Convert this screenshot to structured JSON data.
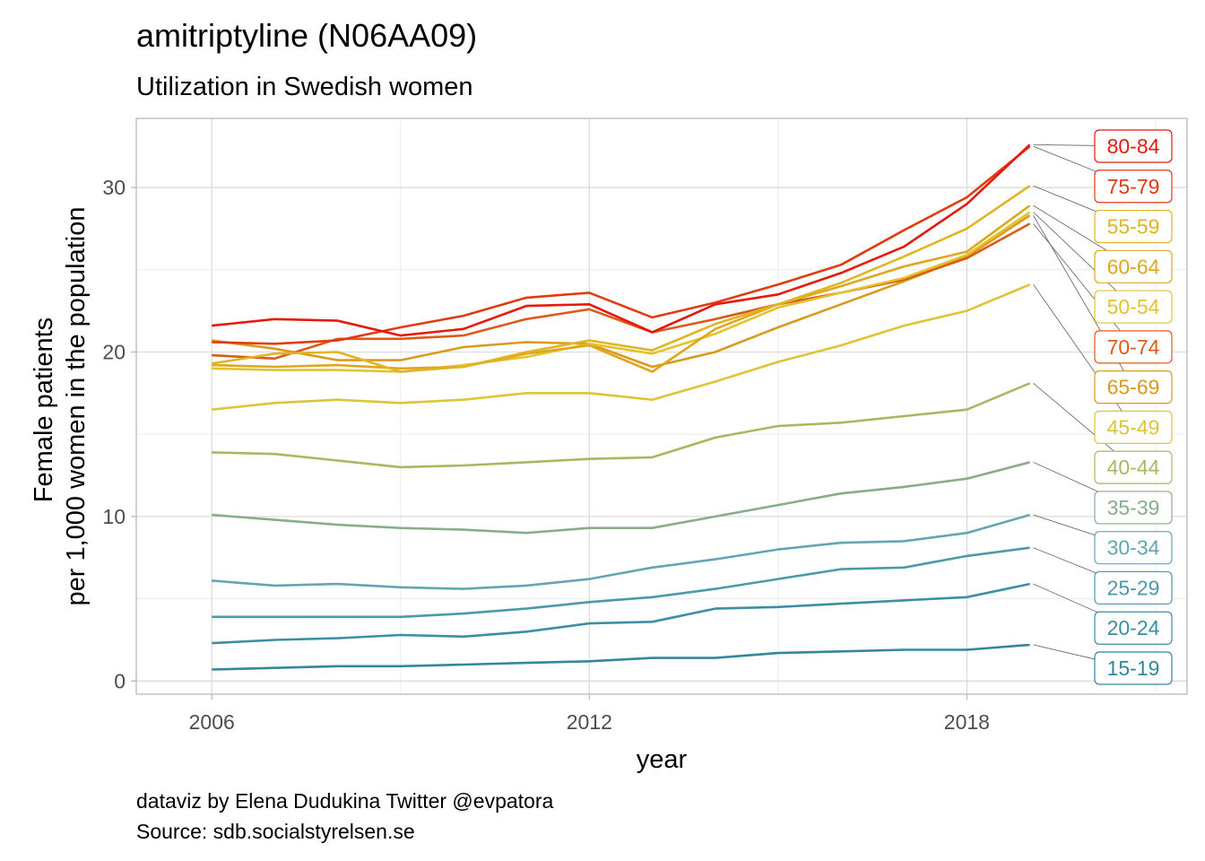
{
  "chart_data": {
    "type": "line",
    "title": "amitriptyline (N06AA09)",
    "subtitle": "Utilization in Swedish women",
    "xlabel": "year",
    "ylabel_lines": [
      "Female patients",
      "per 1,000 women in the population"
    ],
    "caption_lines": [
      "dataviz by Elena Dudukina Twitter @evpatora",
      "Source: sdb.socialstyrelsen.se"
    ],
    "x": [
      2006,
      2007,
      2008,
      2009,
      2010,
      2011,
      2012,
      2013,
      2014,
      2015,
      2016,
      2017,
      2018,
      2019
    ],
    "xlim": [
      2004.8,
      2021.5
    ],
    "ylim": [
      -0.8,
      34.2
    ],
    "x_ticks": [
      2006,
      2012,
      2018
    ],
    "y_ticks": [
      0,
      10,
      20,
      30
    ],
    "x_minor": [
      2009,
      2015,
      2021
    ],
    "y_minor": [
      5,
      15,
      25
    ],
    "grid": true,
    "legend": "direct-labels-right",
    "series": [
      {
        "name": "80-84",
        "color": "#e41a0c",
        "values": [
          21.6,
          22.0,
          21.9,
          21.0,
          21.4,
          22.8,
          22.9,
          21.2,
          22.9,
          23.5,
          24.8,
          26.4,
          29.0,
          32.6
        ]
      },
      {
        "name": "75-79",
        "color": "#e03c12",
        "values": [
          20.6,
          20.5,
          20.7,
          21.5,
          22.2,
          23.3,
          23.6,
          22.1,
          23.0,
          24.1,
          25.3,
          27.4,
          29.4,
          32.5
        ]
      },
      {
        "name": "55-59",
        "color": "#e1b423",
        "values": [
          19.3,
          19.9,
          20.0,
          18.8,
          19.1,
          20.0,
          20.7,
          20.1,
          21.7,
          22.9,
          24.2,
          25.8,
          27.5,
          30.1
        ]
      },
      {
        "name": "60-64",
        "color": "#dda720",
        "values": [
          19.2,
          19.1,
          19.2,
          19.0,
          19.1,
          19.9,
          20.4,
          18.8,
          21.4,
          22.9,
          24.0,
          25.2,
          26.1,
          28.9
        ]
      },
      {
        "name": "50-54",
        "color": "#e3c32c",
        "values": [
          19.0,
          18.9,
          18.9,
          18.8,
          19.2,
          19.7,
          20.5,
          19.9,
          21.1,
          22.7,
          23.6,
          24.5,
          25.9,
          28.5
        ]
      },
      {
        "name": "70-74",
        "color": "#dd5b18",
        "values": [
          19.8,
          19.6,
          20.8,
          20.8,
          21.0,
          22.0,
          22.6,
          21.2,
          22.0,
          22.9,
          23.6,
          24.4,
          25.7,
          27.8
        ]
      },
      {
        "name": "65-69",
        "color": "#da9a1d",
        "values": [
          20.7,
          20.2,
          19.5,
          19.5,
          20.3,
          20.6,
          20.5,
          19.1,
          20.0,
          21.5,
          22.9,
          24.3,
          25.8,
          28.3
        ]
      },
      {
        "name": "45-49",
        "color": "#dcc537",
        "values": [
          16.5,
          16.9,
          17.1,
          16.9,
          17.1,
          17.5,
          17.5,
          17.1,
          18.2,
          19.4,
          20.4,
          21.6,
          22.5,
          24.1
        ]
      },
      {
        "name": "40-44",
        "color": "#a9b760",
        "values": [
          13.9,
          13.8,
          13.4,
          13.0,
          13.1,
          13.3,
          13.5,
          13.6,
          14.8,
          15.5,
          15.7,
          16.1,
          16.5,
          18.1
        ]
      },
      {
        "name": "35-39",
        "color": "#88ad8a",
        "values": [
          10.1,
          9.8,
          9.5,
          9.3,
          9.2,
          9.0,
          9.3,
          9.3,
          10.0,
          10.7,
          11.4,
          11.8,
          12.3,
          13.3
        ]
      },
      {
        "name": "30-34",
        "color": "#63a5b2",
        "values": [
          6.1,
          5.8,
          5.9,
          5.7,
          5.6,
          5.8,
          6.2,
          6.9,
          7.4,
          8.0,
          8.4,
          8.5,
          9.0,
          10.1
        ]
      },
      {
        "name": "25-29",
        "color": "#4b9aaa",
        "values": [
          3.9,
          3.9,
          3.9,
          3.9,
          4.1,
          4.4,
          4.8,
          5.1,
          5.6,
          6.2,
          6.8,
          6.9,
          7.6,
          8.1
        ]
      },
      {
        "name": "20-24",
        "color": "#3a8fa2",
        "values": [
          2.3,
          2.5,
          2.6,
          2.8,
          2.7,
          3.0,
          3.5,
          3.6,
          4.4,
          4.5,
          4.7,
          4.9,
          5.1,
          5.9
        ]
      },
      {
        "name": "15-19",
        "color": "#34869a",
        "values": [
          0.7,
          0.8,
          0.9,
          0.9,
          1.0,
          1.1,
          1.2,
          1.4,
          1.4,
          1.7,
          1.8,
          1.9,
          1.9,
          2.2
        ]
      }
    ]
  }
}
